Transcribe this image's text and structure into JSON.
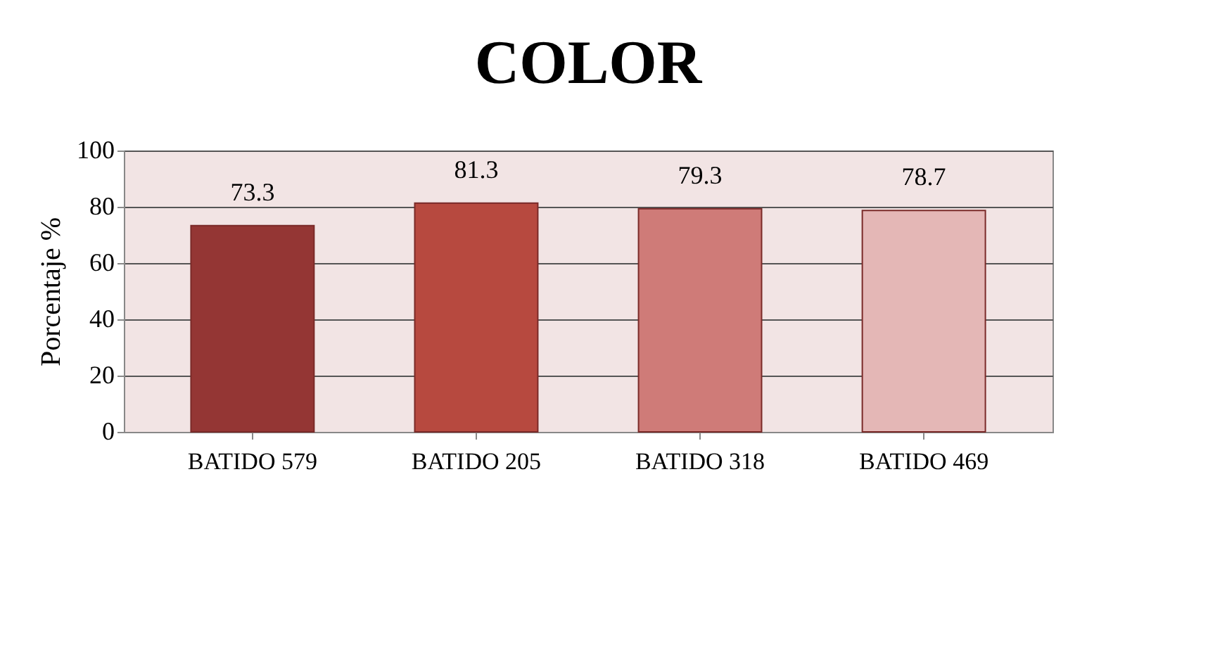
{
  "chart_data": {
    "type": "bar",
    "title": "COLOR",
    "ylabel": "Porcentaje %",
    "categories": [
      "BATIDO 579",
      "BATIDO 205",
      "BATIDO 318",
      "BATIDO 469"
    ],
    "values": [
      73.3,
      81.3,
      79.3,
      78.7
    ],
    "colors": [
      "#943634",
      "#b7493f",
      "#cf7b78",
      "#e4b7b6"
    ],
    "ylim": [
      0,
      100
    ],
    "yticks": [
      0,
      20,
      40,
      60,
      80,
      100
    ],
    "grid": "y",
    "data_labels": true
  }
}
